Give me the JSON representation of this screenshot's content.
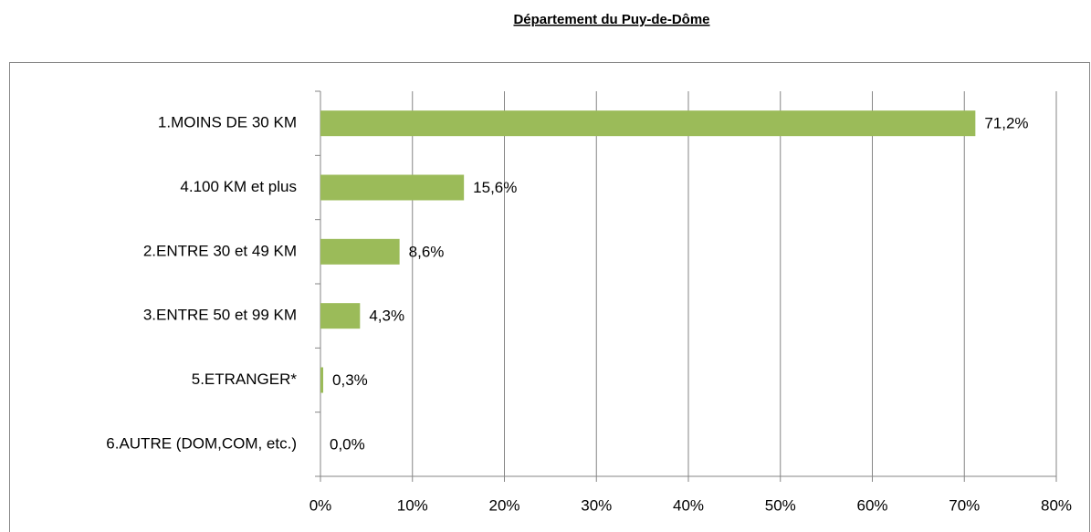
{
  "chart_data": {
    "type": "barh",
    "title": "Département du Puy-de-Dôme",
    "categories": [
      "1.MOINS DE 30 KM",
      "4.100 KM et plus",
      "2.ENTRE 30 et 49 KM",
      "3.ENTRE 50 et 99 KM",
      "5.ETRANGER*",
      "6.AUTRE  (DOM,COM,  etc.)"
    ],
    "values": [
      71.2,
      15.6,
      8.6,
      4.3,
      0.3,
      0.0
    ],
    "value_labels": [
      "71,2%",
      "15,6%",
      "8,6%",
      "4,3%",
      "0,3%",
      "0,0%"
    ],
    "color": "#9bbb59",
    "xlim": [
      0,
      80
    ],
    "xticks": [
      {
        "value": 0,
        "label": "0%"
      },
      {
        "value": 10,
        "label": "10%"
      },
      {
        "value": 20,
        "label": "20%"
      },
      {
        "value": 30,
        "label": "30%"
      },
      {
        "value": 40,
        "label": "40%"
      },
      {
        "value": 50,
        "label": "50%"
      },
      {
        "value": 60,
        "label": "60%"
      },
      {
        "value": 70,
        "label": "70%"
      },
      {
        "value": 80,
        "label": "80%"
      }
    ],
    "grid": true
  }
}
